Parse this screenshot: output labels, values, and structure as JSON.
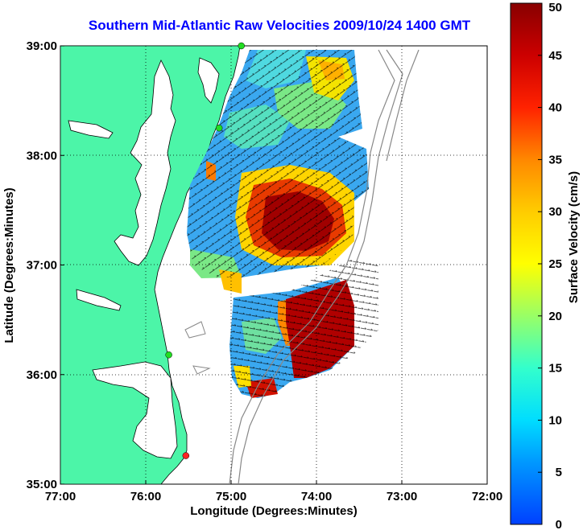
{
  "title": "Southern Mid-Atlantic Raw Velocities 2009/10/24 1400 GMT",
  "axes": {
    "xlabel": "Longitude (Degrees:Minutes)",
    "ylabel": "Latitude (Degrees:Minutes)",
    "x_ticks": [
      "77:00",
      "76:00",
      "75:00",
      "74:00",
      "73:00",
      "72:00"
    ],
    "y_ticks": [
      "39:00",
      "38:00",
      "37:00",
      "36:00",
      "35:00"
    ]
  },
  "colorbar": {
    "label": "Surface Velocity (cm/s)",
    "ticks": [
      "50",
      "45",
      "40",
      "35",
      "30",
      "25",
      "20",
      "15",
      "10",
      "5",
      "0"
    ],
    "min": 0,
    "max": 50
  },
  "colors": {
    "land": "#4cf5a8",
    "title": "#0000ff",
    "station_green": "#22dd22",
    "station_red": "#ff2222"
  },
  "stations": [
    {
      "color": "green",
      "lon": -74.88,
      "lat": 39.0
    },
    {
      "color": "green",
      "lon": -75.14,
      "lat": 38.25
    },
    {
      "color": "green",
      "lon": -75.73,
      "lat": 36.18
    },
    {
      "color": "red",
      "lon": -75.53,
      "lat": 35.26
    }
  ]
}
